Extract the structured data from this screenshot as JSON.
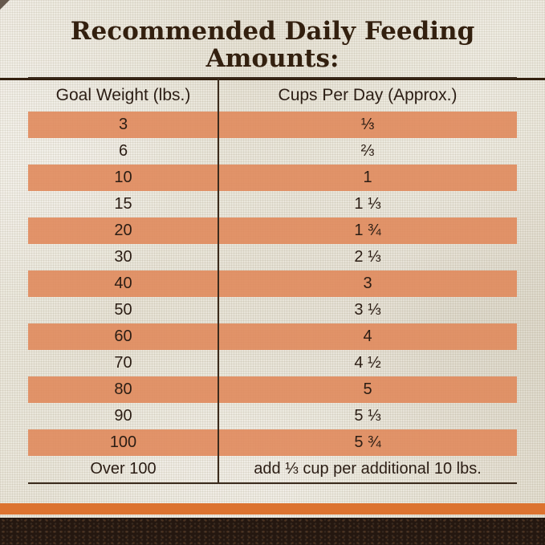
{
  "title": "Recommended Daily Feeding Amounts:",
  "chart_data": {
    "type": "table",
    "title": "Recommended Daily Feeding Amounts:",
    "columns": [
      "Goal Weight (lbs.)",
      "Cups Per Day (Approx.)"
    ],
    "rows": [
      [
        "3",
        "⅓"
      ],
      [
        "6",
        "⅔"
      ],
      [
        "10",
        "1"
      ],
      [
        "15",
        "1 ⅓"
      ],
      [
        "20",
        "1 ¾"
      ],
      [
        "30",
        "2 ⅓"
      ],
      [
        "40",
        "3"
      ],
      [
        "50",
        "3 ⅓"
      ],
      [
        "60",
        "4"
      ],
      [
        "70",
        "4 ½"
      ],
      [
        "80",
        "5"
      ],
      [
        "90",
        "5 ⅓"
      ],
      [
        "100",
        "5 ¾"
      ],
      [
        "Over 100",
        "add ⅓ cup per additional 10 lbs."
      ]
    ],
    "highlighted_weight_rows": [
      "3",
      "10",
      "20",
      "40",
      "60",
      "80",
      "100"
    ],
    "layout": "two-column table, alternating rows highlighted in orange starting with first data row, legend none, grid off"
  },
  "colors": {
    "row_highlight": "#E08A5C",
    "accent_bar": "#DC7330",
    "title_text": "#33200F",
    "table_text": "#2B1D14",
    "background": "#E8E4D7",
    "bottom_strip": "#241710",
    "rule_lines": "#3B2B1D"
  }
}
